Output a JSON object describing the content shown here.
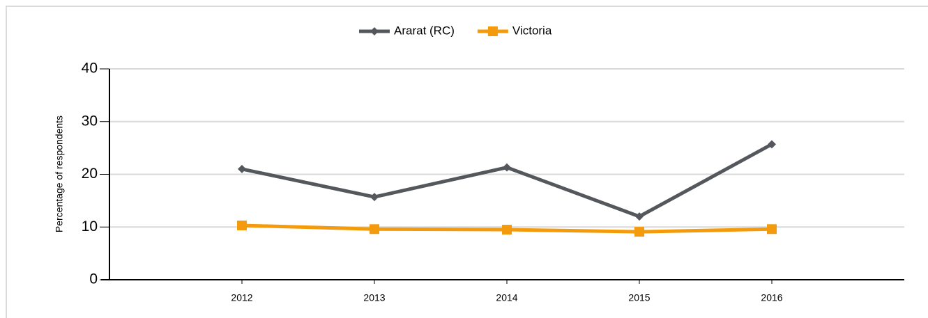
{
  "chart_data": {
    "type": "line",
    "x": [
      2012,
      2013,
      2014,
      2015,
      2016
    ],
    "series": [
      {
        "name": "Ararat (RC)",
        "color": "#54585d",
        "marker": "diamond",
        "values": [
          21.0,
          15.7,
          21.3,
          12.0,
          25.7
        ]
      },
      {
        "name": "Victoria",
        "color": "#f39a0d",
        "marker": "square",
        "values": [
          10.3,
          9.6,
          9.5,
          9.1,
          9.6
        ]
      }
    ],
    "ylabel": "Percentage of respondents",
    "xlim": [
      2011,
      2017
    ],
    "xticks": [
      2012,
      2013,
      2014,
      2015,
      2016
    ],
    "ylim": [
      0,
      40
    ],
    "yticks": [
      0,
      10,
      20,
      30,
      40
    ],
    "grid": true,
    "legend": "top"
  }
}
